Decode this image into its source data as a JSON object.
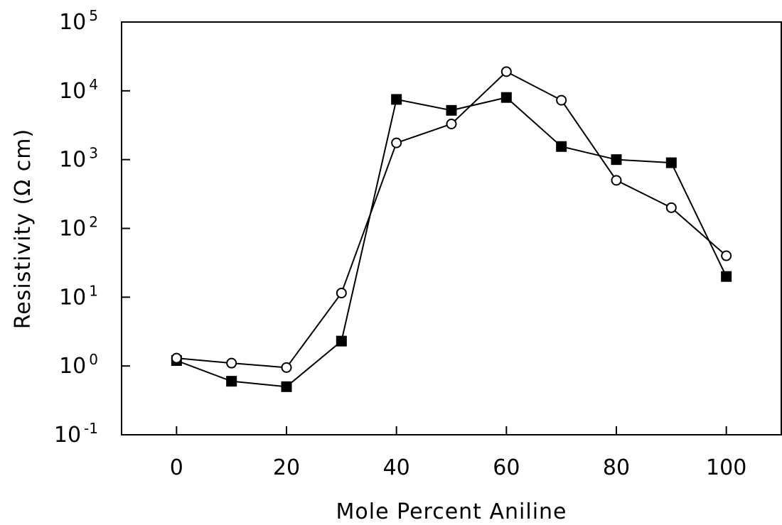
{
  "chart_data": {
    "type": "line",
    "xlabel": "Mole Percent Aniline",
    "ylabel": "Resistivity (Ω cm)",
    "xlim": [
      -10,
      110
    ],
    "ylim_log10": [
      -1,
      5
    ],
    "y_scale": "log",
    "x_ticks": [
      "0",
      "20",
      "40",
      "60",
      "80",
      "100"
    ],
    "x_tick_values": [
      0,
      20,
      40,
      60,
      80,
      100
    ],
    "y_ticks": [
      {
        "base": "10",
        "exp": "-1",
        "value": -1
      },
      {
        "base": "10",
        "exp": "0",
        "value": 0
      },
      {
        "base": "10",
        "exp": "1",
        "value": 1
      },
      {
        "base": "10",
        "exp": "2",
        "value": 2
      },
      {
        "base": "10",
        "exp": "3",
        "value": 3
      },
      {
        "base": "10",
        "exp": "4",
        "value": 4
      },
      {
        "base": "10",
        "exp": "5",
        "value": 5
      }
    ],
    "grid": false,
    "series": [
      {
        "marker": "filled-square",
        "color": "#000000",
        "x": [
          0,
          10,
          20,
          30,
          40,
          50,
          60,
          70,
          80,
          90,
          100
        ],
        "y": [
          1.2,
          0.6,
          0.5,
          2.3,
          7500,
          5200,
          8000,
          1550,
          1000,
          900,
          20
        ]
      },
      {
        "marker": "open-circle",
        "color": "#000000",
        "x": [
          0,
          10,
          20,
          30,
          40,
          50,
          60,
          70,
          80,
          90,
          100
        ],
        "y": [
          1.3,
          1.1,
          0.95,
          11.5,
          1750,
          3300,
          19000,
          7300,
          500,
          200,
          40
        ]
      }
    ]
  }
}
